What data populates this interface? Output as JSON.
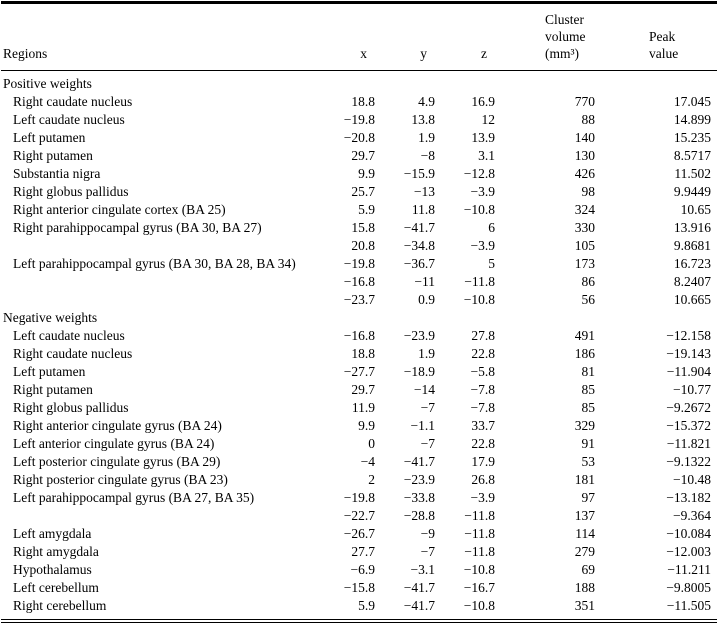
{
  "table": {
    "headers": {
      "regions": "Regions",
      "x": "x",
      "y": "y",
      "z": "z",
      "cluster_line1": "Cluster volume",
      "cluster_line2": "(mm³)",
      "peak_line1": "Peak",
      "peak_line2": "value"
    },
    "sections": [
      {
        "label": "Positive weights",
        "rows": [
          {
            "region": "Right caudate nucleus",
            "x": "18.8",
            "y": "4.9",
            "z": "16.9",
            "volume": "770",
            "peak": "17.045"
          },
          {
            "region": "Left caudate nucleus",
            "x": "−19.8",
            "y": "13.8",
            "z": "12",
            "volume": "88",
            "peak": "14.899"
          },
          {
            "region": "Left putamen",
            "x": "−20.8",
            "y": "1.9",
            "z": "13.9",
            "volume": "140",
            "peak": "15.235"
          },
          {
            "region": "Right putamen",
            "x": "29.7",
            "y": "−8",
            "z": "3.1",
            "volume": "130",
            "peak": "8.5717"
          },
          {
            "region": "Substantia nigra",
            "x": "9.9",
            "y": "−15.9",
            "z": "−12.8",
            "volume": "426",
            "peak": "11.502"
          },
          {
            "region": "Right globus pallidus",
            "x": "25.7",
            "y": "−13",
            "z": "−3.9",
            "volume": "98",
            "peak": "9.9449"
          },
          {
            "region": "Right anterior cingulate cortex (BA 25)",
            "x": "5.9",
            "y": "11.8",
            "z": "−10.8",
            "volume": "324",
            "peak": "10.65"
          },
          {
            "region": "Right parahippocampal gyrus (BA 30, BA 27)",
            "x": "15.8",
            "y": "−41.7",
            "z": "6",
            "volume": "330",
            "peak": "13.916"
          },
          {
            "region": "",
            "x": "20.8",
            "y": "−34.8",
            "z": "−3.9",
            "volume": "105",
            "peak": "9.8681"
          },
          {
            "region": "Left parahippocampal gyrus (BA 30, BA 28, BA 34)",
            "x": "−19.8",
            "y": "−36.7",
            "z": "5",
            "volume": "173",
            "peak": "16.723"
          },
          {
            "region": "",
            "x": "−16.8",
            "y": "−11",
            "z": "−11.8",
            "volume": "86",
            "peak": "8.2407"
          },
          {
            "region": "",
            "x": "−23.7",
            "y": "0.9",
            "z": "−10.8",
            "volume": "56",
            "peak": "10.665"
          }
        ]
      },
      {
        "label": "Negative weights",
        "rows": [
          {
            "region": "Left caudate nucleus",
            "x": "−16.8",
            "y": "−23.9",
            "z": "27.8",
            "volume": "491",
            "peak": "−12.158"
          },
          {
            "region": "Right caudate nucleus",
            "x": "18.8",
            "y": "1.9",
            "z": "22.8",
            "volume": "186",
            "peak": "−19.143"
          },
          {
            "region": "Left putamen",
            "x": "−27.7",
            "y": "−18.9",
            "z": "−5.8",
            "volume": "81",
            "peak": "−11.904"
          },
          {
            "region": "Right putamen",
            "x": "29.7",
            "y": "−14",
            "z": "−7.8",
            "volume": "85",
            "peak": "−10.77"
          },
          {
            "region": "Right globus pallidus",
            "x": "11.9",
            "y": "−7",
            "z": "−7.8",
            "volume": "85",
            "peak": "−9.2672"
          },
          {
            "region": "Right anterior cingulate gyrus (BA 24)",
            "x": "9.9",
            "y": "−1.1",
            "z": "33.7",
            "volume": "329",
            "peak": "−15.372"
          },
          {
            "region": "Left anterior cingulate gyrus (BA 24)",
            "x": "0",
            "y": "−7",
            "z": "22.8",
            "volume": "91",
            "peak": "−11.821"
          },
          {
            "region": "Left posterior cingulate gyrus (BA 29)",
            "x": "−4",
            "y": "−41.7",
            "z": "17.9",
            "volume": "53",
            "peak": "−9.1322"
          },
          {
            "region": "Right posterior cingulate gyrus (BA 23)",
            "x": "2",
            "y": "−23.9",
            "z": "26.8",
            "volume": "181",
            "peak": "−10.48"
          },
          {
            "region": "Left parahippocampal gyrus (BA 27, BA 35)",
            "x": "−19.8",
            "y": "−33.8",
            "z": "−3.9",
            "volume": "97",
            "peak": "−13.182"
          },
          {
            "region": "",
            "x": "−22.7",
            "y": "−28.8",
            "z": "−11.8",
            "volume": "137",
            "peak": "−9.364"
          },
          {
            "region": "Left amygdala",
            "x": "−26.7",
            "y": "−9",
            "z": "−11.8",
            "volume": "114",
            "peak": "−10.084"
          },
          {
            "region": "Right amygdala",
            "x": "27.7",
            "y": "−7",
            "z": "−11.8",
            "volume": "279",
            "peak": "−12.003"
          },
          {
            "region": "Hypothalamus",
            "x": "−6.9",
            "y": "−3.1",
            "z": "−10.8",
            "volume": "69",
            "peak": "−11.211"
          },
          {
            "region": "Left cerebellum",
            "x": "−15.8",
            "y": "−41.7",
            "z": "−16.7",
            "volume": "188",
            "peak": "−9.8005"
          },
          {
            "region": "Right cerebellum",
            "x": "5.9",
            "y": "−41.7",
            "z": "−10.8",
            "volume": "351",
            "peak": "−11.505"
          }
        ]
      }
    ]
  }
}
